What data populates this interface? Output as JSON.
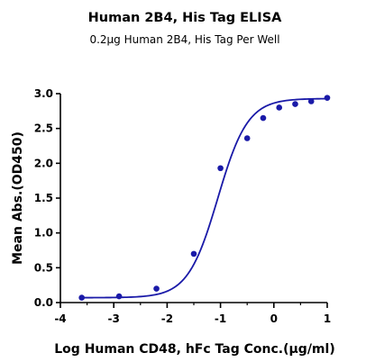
{
  "chart_data": {
    "type": "scatter",
    "title": "Human 2B4, His Tag ELISA",
    "subtitle": "0.2μg Human 2B4, His Tag Per Well",
    "xlabel": "Log Human CD48, hFc Tag Conc.(μg/ml)",
    "ylabel": "Mean Abs.(OD450)",
    "xlim": [
      -4,
      1
    ],
    "ylim": [
      0,
      3.0
    ],
    "xticks": [
      "-4",
      "-3",
      "-2",
      "-1",
      "0",
      "1"
    ],
    "yticks": [
      "0.0",
      "0.5",
      "1.0",
      "1.5",
      "2.0",
      "2.5",
      "3.0"
    ],
    "grid": false,
    "legend": "none",
    "series": [
      {
        "color": "#1a1aa8",
        "points": [
          {
            "x": -3.6,
            "y": 0.07
          },
          {
            "x": -2.9,
            "y": 0.09
          },
          {
            "x": -2.2,
            "y": 0.2
          },
          {
            "x": -1.5,
            "y": 0.7
          },
          {
            "x": -1.0,
            "y": 1.93
          },
          {
            "x": -0.5,
            "y": 2.36
          },
          {
            "x": -0.2,
            "y": 2.65
          },
          {
            "x": 0.1,
            "y": 2.8
          },
          {
            "x": 0.4,
            "y": 2.85
          },
          {
            "x": 0.7,
            "y": 2.89
          },
          {
            "x": 1.0,
            "y": 2.94
          }
        ],
        "fit": {
          "model": "4PL",
          "bottom": 0.07,
          "top": 2.93,
          "logEC50": -1.05,
          "hillslope": 1.55
        }
      }
    ]
  }
}
